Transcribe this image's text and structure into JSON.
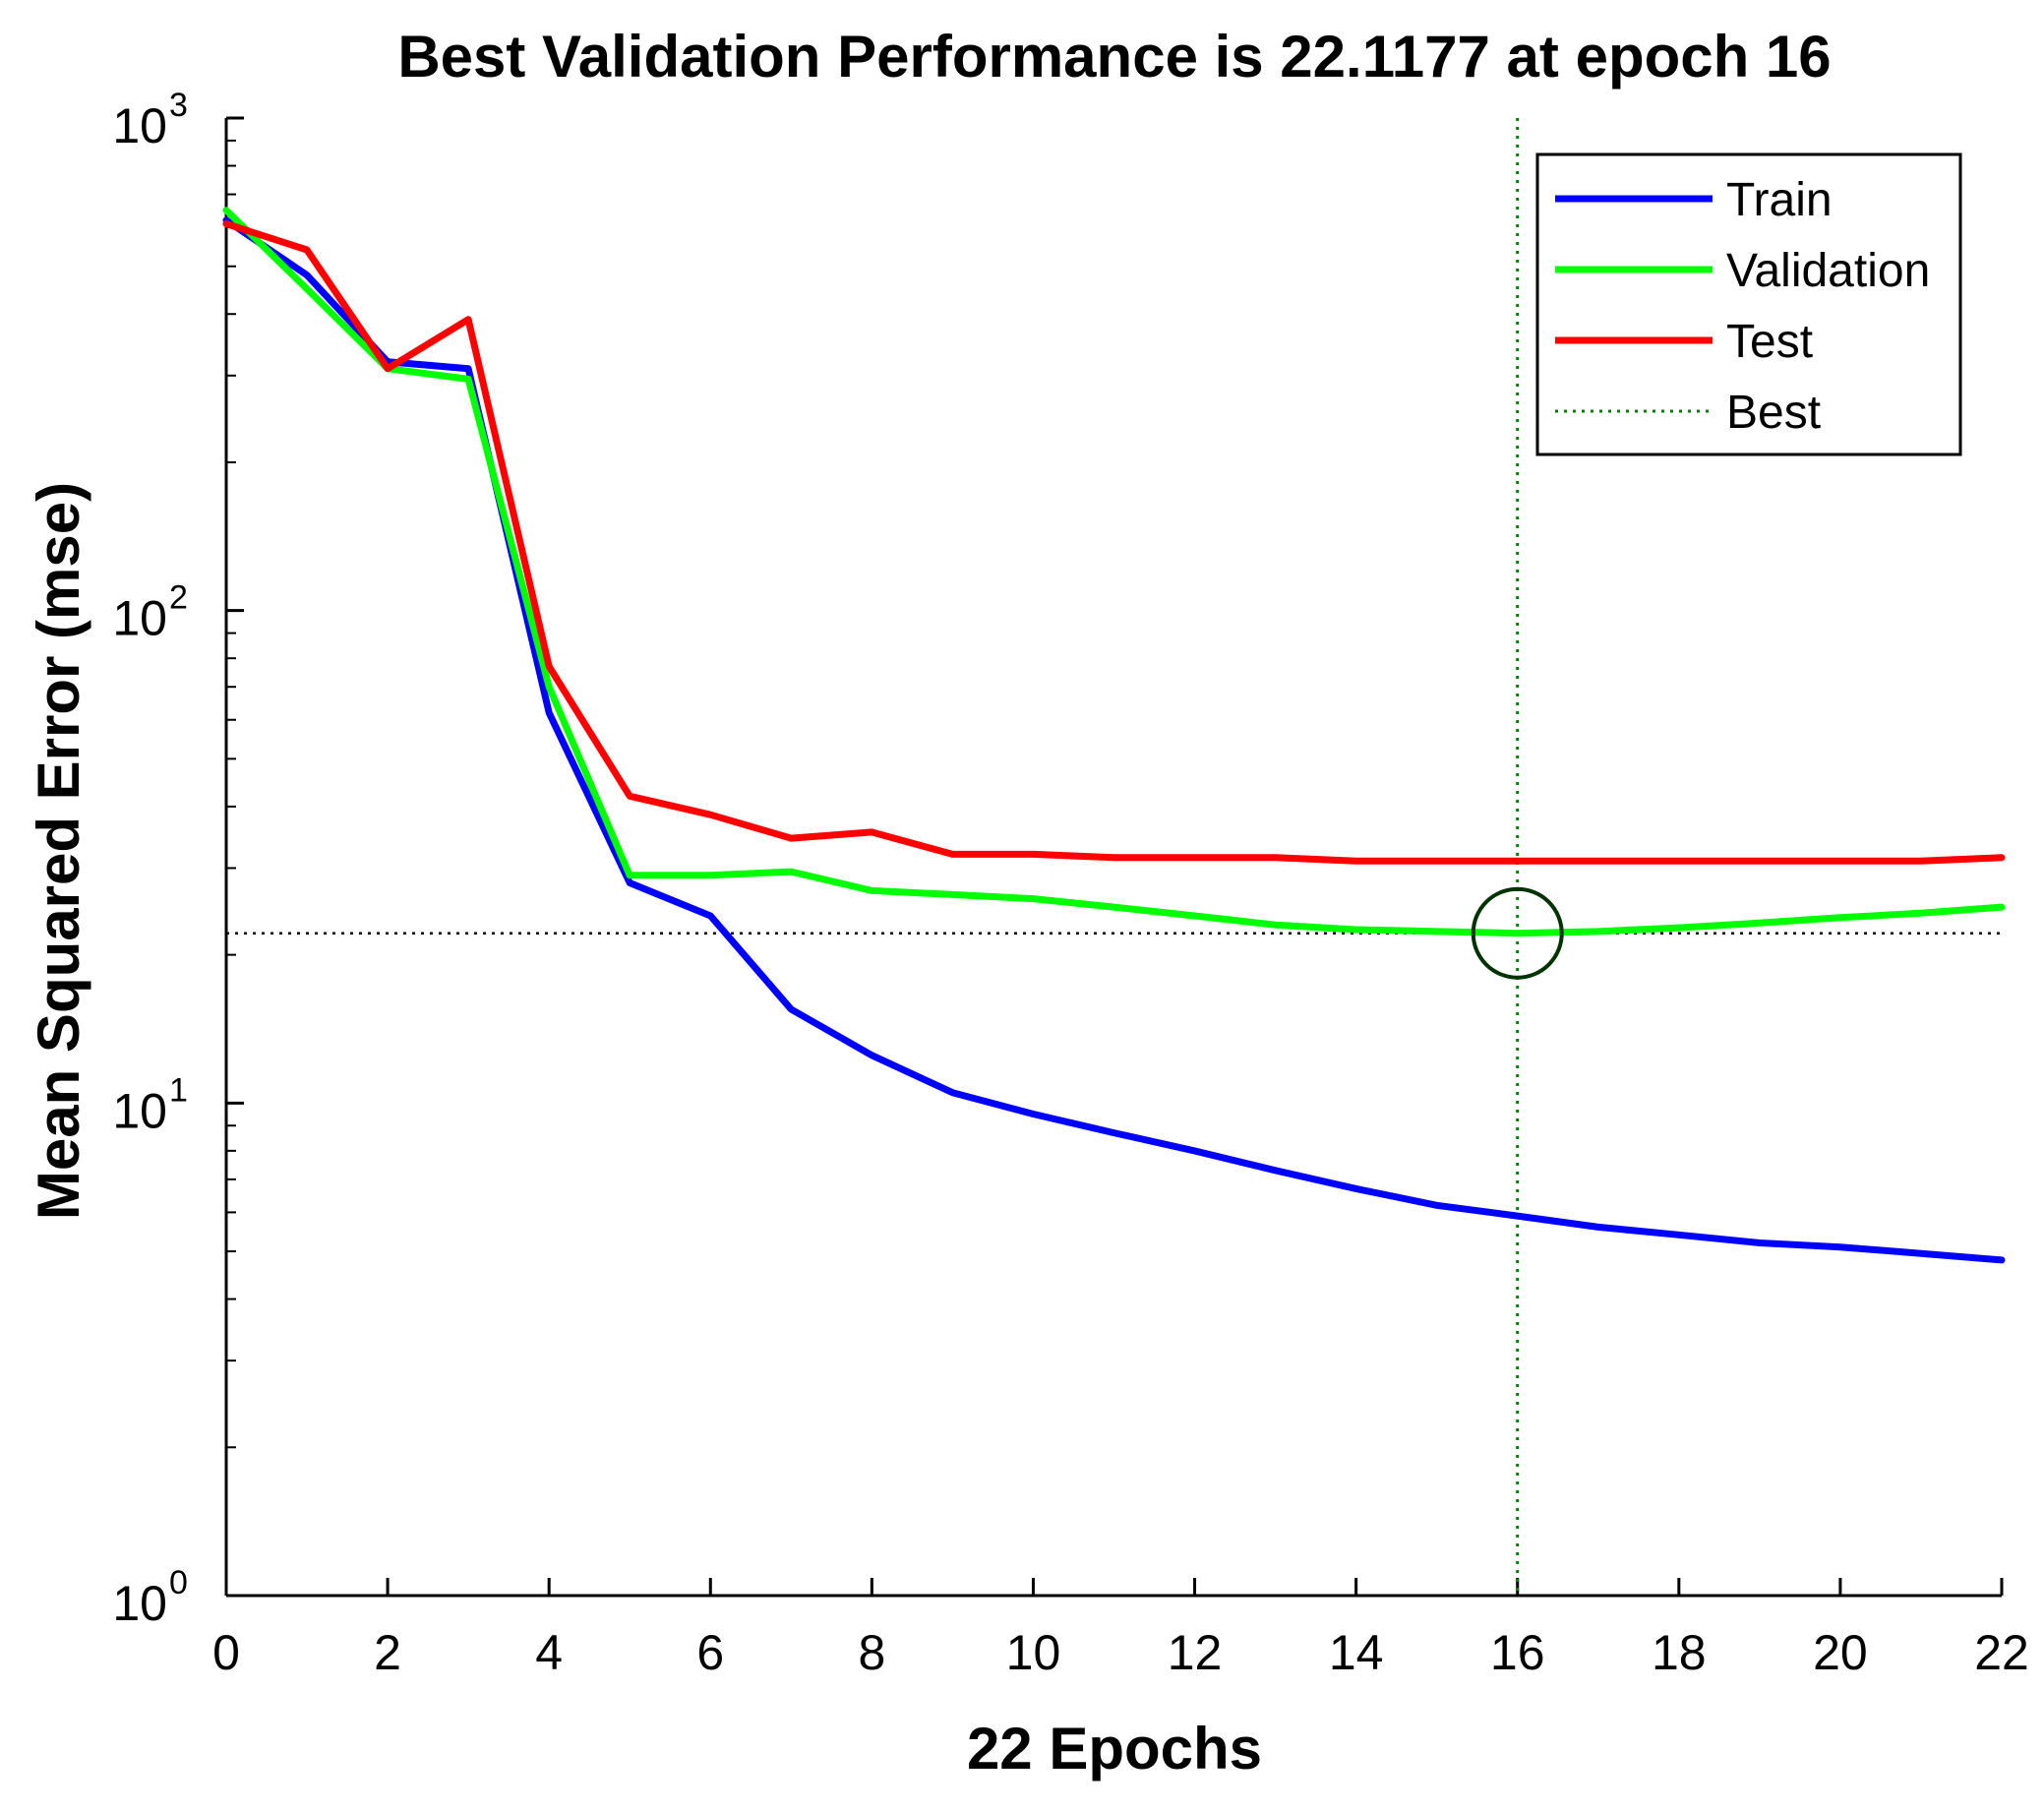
{
  "chart_data": {
    "type": "line",
    "title": "Best Validation Performance is 22.1177 at epoch 16",
    "xlabel": "22 Epochs",
    "ylabel": "Mean Squared Error  (mse)",
    "yscale": "log",
    "xlim": [
      0,
      22
    ],
    "ylim": [
      1,
      1000
    ],
    "x_ticks": [
      0,
      2,
      4,
      6,
      8,
      10,
      12,
      14,
      16,
      18,
      20,
      22
    ],
    "y_ticks": [
      {
        "value": 1,
        "base": "10",
        "exp": "0"
      },
      {
        "value": 10,
        "base": "10",
        "exp": "1"
      },
      {
        "value": 100,
        "base": "10",
        "exp": "2"
      },
      {
        "value": 1000,
        "base": "10",
        "exp": "3"
      }
    ],
    "x": [
      0,
      1,
      2,
      3,
      4,
      5,
      6,
      7,
      8,
      9,
      10,
      11,
      12,
      13,
      14,
      15,
      16,
      17,
      18,
      19,
      20,
      21,
      22
    ],
    "series": [
      {
        "name": "Train",
        "color": "#0000ff",
        "values": [
          620,
          480,
          320,
          310,
          62,
          28,
          24,
          15.5,
          12.5,
          10.5,
          9.5,
          8.7,
          8.0,
          7.3,
          6.7,
          6.2,
          5.9,
          5.6,
          5.4,
          5.2,
          5.1,
          4.95,
          4.8
        ]
      },
      {
        "name": "Validation",
        "color": "#00ff00",
        "values": [
          650,
          450,
          310,
          295,
          70,
          29,
          29,
          29.5,
          27,
          26.5,
          26,
          25,
          24,
          23,
          22.5,
          22.3,
          22.1177,
          22.3,
          22.7,
          23.2,
          23.8,
          24.3,
          25
        ]
      },
      {
        "name": "Test",
        "color": "#ff0000",
        "values": [
          610,
          540,
          310,
          390,
          77,
          42,
          38.5,
          34.5,
          35.5,
          32,
          32,
          31.5,
          31.5,
          31.5,
          31,
          31,
          31,
          31,
          31,
          31,
          31,
          31,
          31.5
        ]
      }
    ],
    "best": {
      "label": "Best",
      "epoch": 16,
      "value": 22.1177,
      "color": "#008000"
    },
    "legend_position": "top-right"
  }
}
